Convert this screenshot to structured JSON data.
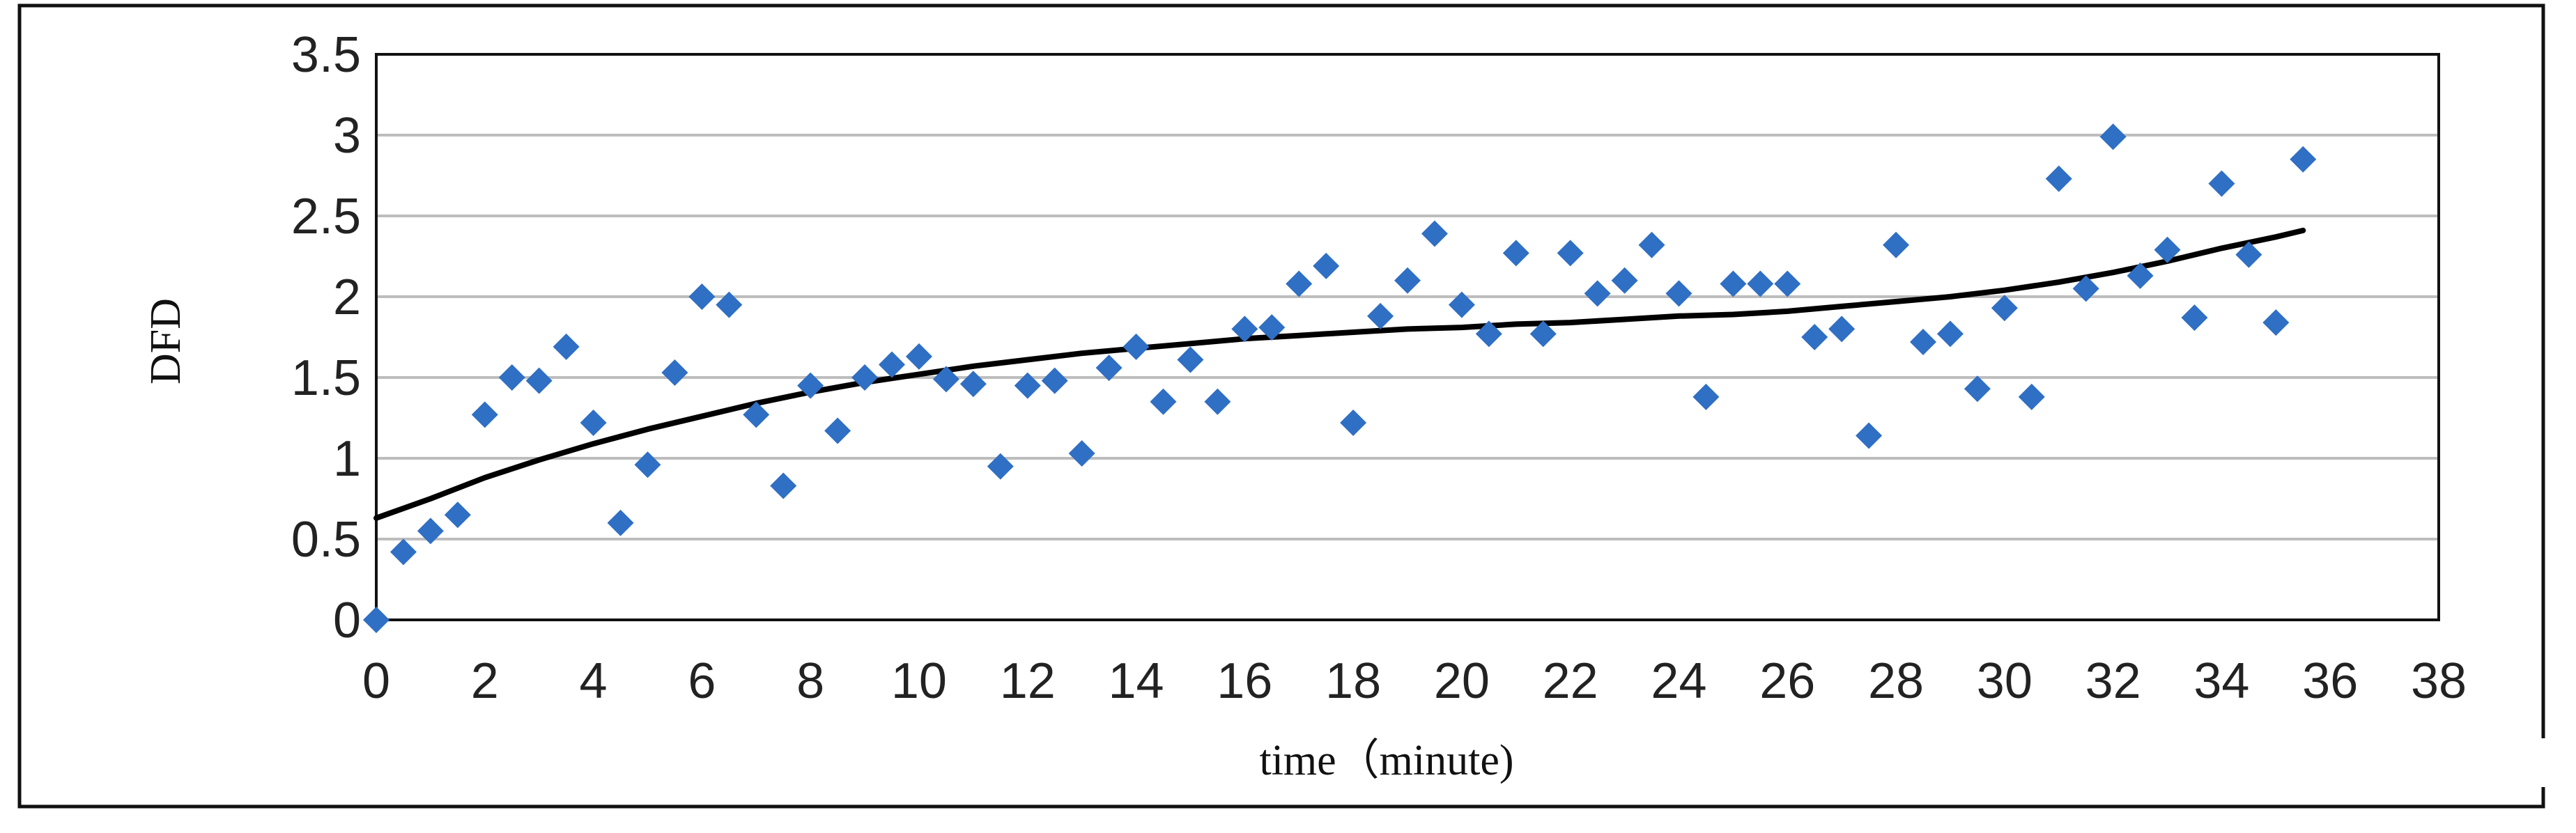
{
  "chart_data": {
    "type": "scatter",
    "xlabel": "time（minute)",
    "ylabel": "DFD",
    "xlim": [
      0,
      38
    ],
    "ylim": [
      0,
      3.5
    ],
    "x_ticks": [
      "0",
      "2",
      "4",
      "6",
      "8",
      "10",
      "12",
      "14",
      "16",
      "18",
      "20",
      "22",
      "24",
      "26",
      "28",
      "30",
      "32",
      "34",
      "36",
      "38"
    ],
    "y_ticks": [
      "0",
      "0.5",
      "1",
      "1.5",
      "2",
      "2.5",
      "3",
      "3.5"
    ],
    "grid": "horizontal",
    "marker_color": "#2f6fc4",
    "trend_color": "#000000",
    "series": [
      {
        "points": [
          [
            0,
            0.0
          ],
          [
            0.5,
            0.42
          ],
          [
            1,
            0.55
          ],
          [
            1.5,
            0.65
          ],
          [
            2,
            1.27
          ],
          [
            2.5,
            1.5
          ],
          [
            3,
            1.48
          ],
          [
            3.5,
            1.69
          ],
          [
            4,
            1.22
          ],
          [
            4.5,
            0.6
          ],
          [
            5,
            0.96
          ],
          [
            5.5,
            1.53
          ],
          [
            6,
            2.0
          ],
          [
            6.5,
            1.95
          ],
          [
            7,
            1.27
          ],
          [
            7.5,
            0.83
          ],
          [
            8,
            1.45
          ],
          [
            8.5,
            1.17
          ],
          [
            9,
            1.5
          ],
          [
            9.5,
            1.58
          ],
          [
            10,
            1.63
          ],
          [
            10.5,
            1.49
          ],
          [
            11,
            1.46
          ],
          [
            11.5,
            0.95
          ],
          [
            12,
            1.45
          ],
          [
            12.5,
            1.48
          ],
          [
            13,
            1.03
          ],
          [
            13.5,
            1.56
          ],
          [
            14,
            1.69
          ],
          [
            14.5,
            1.35
          ],
          [
            15,
            1.61
          ],
          [
            15.5,
            1.35
          ],
          [
            16,
            1.8
          ],
          [
            16.5,
            1.81
          ],
          [
            17,
            2.08
          ],
          [
            17.5,
            2.19
          ],
          [
            18,
            1.22
          ],
          [
            18.5,
            1.88
          ],
          [
            19,
            2.1
          ],
          [
            19.5,
            2.39
          ],
          [
            20,
            1.95
          ],
          [
            20.5,
            1.77
          ],
          [
            21,
            2.27
          ],
          [
            21.5,
            1.77
          ],
          [
            22,
            2.27
          ],
          [
            22.5,
            2.02
          ],
          [
            23,
            2.1
          ],
          [
            23.5,
            2.32
          ],
          [
            24,
            2.02
          ],
          [
            24.5,
            1.38
          ],
          [
            25,
            2.08
          ],
          [
            25.5,
            2.08
          ],
          [
            26,
            2.08
          ],
          [
            26.5,
            1.75
          ],
          [
            27,
            1.8
          ],
          [
            27.5,
            1.14
          ],
          [
            28,
            2.32
          ],
          [
            28.5,
            1.72
          ],
          [
            29,
            1.77
          ],
          [
            29.5,
            1.43
          ],
          [
            30,
            1.93
          ],
          [
            30.5,
            1.38
          ],
          [
            31,
            2.73
          ],
          [
            31.5,
            2.05
          ],
          [
            32,
            2.99
          ],
          [
            32.5,
            2.13
          ],
          [
            33,
            2.29
          ],
          [
            33.5,
            1.87
          ],
          [
            34,
            2.7
          ],
          [
            34.5,
            2.26
          ],
          [
            35,
            1.84
          ],
          [
            35.5,
            2.85
          ]
        ]
      },
      {
        "type": "trendline",
        "points": [
          [
            0,
            0.63
          ],
          [
            1,
            0.75
          ],
          [
            2,
            0.88
          ],
          [
            3,
            0.99
          ],
          [
            4,
            1.09
          ],
          [
            5,
            1.18
          ],
          [
            6,
            1.26
          ],
          [
            7,
            1.34
          ],
          [
            8,
            1.41
          ],
          [
            9,
            1.47
          ],
          [
            10,
            1.52
          ],
          [
            11,
            1.57
          ],
          [
            12,
            1.61
          ],
          [
            13,
            1.65
          ],
          [
            14,
            1.68
          ],
          [
            15,
            1.71
          ],
          [
            16,
            1.74
          ],
          [
            17,
            1.76
          ],
          [
            18,
            1.78
          ],
          [
            19,
            1.8
          ],
          [
            20,
            1.81
          ],
          [
            21,
            1.83
          ],
          [
            22,
            1.84
          ],
          [
            23,
            1.86
          ],
          [
            24,
            1.88
          ],
          [
            25,
            1.89
          ],
          [
            26,
            1.91
          ],
          [
            27,
            1.94
          ],
          [
            28,
            1.97
          ],
          [
            29,
            2.0
          ],
          [
            30,
            2.04
          ],
          [
            31,
            2.09
          ],
          [
            32,
            2.15
          ],
          [
            33,
            2.22
          ],
          [
            34,
            2.3
          ],
          [
            35,
            2.37
          ],
          [
            35.5,
            2.41
          ]
        ]
      }
    ]
  }
}
